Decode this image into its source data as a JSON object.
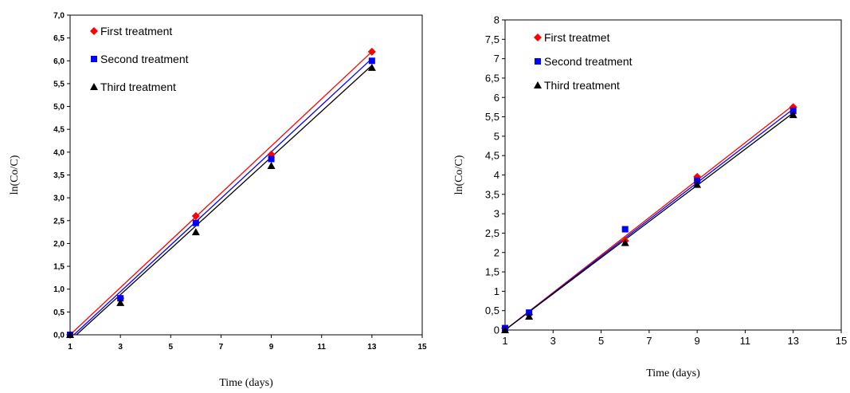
{
  "chart_data": [
    {
      "type": "scatter",
      "xlabel": "Time (days)",
      "ylabel": "ln(Co/C)",
      "xlim": [
        1,
        15
      ],
      "ylim": [
        0,
        7
      ],
      "x_ticks": [
        "1",
        "3",
        "5",
        "7",
        "9",
        "11",
        "13",
        "15"
      ],
      "y_ticks": [
        "0,0",
        "0,5",
        "1,0",
        "1,5",
        "2,0",
        "2,5",
        "3,0",
        "3,5",
        "4,0",
        "4,5",
        "5,0",
        "5,5",
        "6,0",
        "6,5",
        "7,0"
      ],
      "grid": false,
      "legend_position": "top-left",
      "series": [
        {
          "name": "First treatment",
          "color": "#ff0000",
          "marker": "diamond",
          "points": [
            [
              1,
              0.0
            ],
            [
              3,
              0.8
            ],
            [
              6,
              2.6
            ],
            [
              9,
              3.95
            ],
            [
              13,
              6.2
            ]
          ],
          "fit": [
            [
              1,
              0.0
            ],
            [
              13,
              6.2
            ]
          ]
        },
        {
          "name": "Second treatment",
          "color": "#0000ff",
          "marker": "square",
          "points": [
            [
              1,
              0.0
            ],
            [
              3,
              0.8
            ],
            [
              6,
              2.45
            ],
            [
              9,
              3.85
            ],
            [
              13,
              6.0
            ]
          ],
          "fit": [
            [
              1.15,
              0.0
            ],
            [
              13,
              6.05
            ]
          ]
        },
        {
          "name": "Third treatment",
          "color": "#000000",
          "marker": "triangle",
          "points": [
            [
              1,
              0.0
            ],
            [
              3,
              0.7
            ],
            [
              6,
              2.25
            ],
            [
              9,
              3.7
            ],
            [
              13,
              5.85
            ]
          ],
          "fit": [
            [
              1.25,
              0.0
            ],
            [
              13,
              5.9
            ]
          ]
        }
      ]
    },
    {
      "type": "scatter",
      "xlabel": "Time (days)",
      "ylabel": "ln(Co/C)",
      "xlim": [
        1,
        15
      ],
      "ylim": [
        0,
        8
      ],
      "x_ticks": [
        "1",
        "3",
        "5",
        "7",
        "9",
        "11",
        "13",
        "15"
      ],
      "y_ticks": [
        "0",
        "0,5",
        "1",
        "1,5",
        "2",
        "2,5",
        "3",
        "3,5",
        "4",
        "4,5",
        "5",
        "5,5",
        "6",
        "6,5",
        "7",
        "7,5",
        "8"
      ],
      "grid": false,
      "legend_position": "top-left",
      "series": [
        {
          "name": "First treatmet",
          "color": "#ff0000",
          "marker": "diamond",
          "points": [
            [
              1,
              0.05
            ],
            [
              2,
              0.4
            ],
            [
              6,
              2.3
            ],
            [
              9,
              3.95
            ],
            [
              13,
              5.75
            ]
          ],
          "fit": [
            [
              1,
              0.0
            ],
            [
              13,
              5.8
            ]
          ]
        },
        {
          "name": "Second treatment",
          "color": "#0000ff",
          "marker": "square",
          "points": [
            [
              1,
              0.05
            ],
            [
              2,
              0.45
            ],
            [
              6,
              2.6
            ],
            [
              9,
              3.85
            ],
            [
              13,
              5.65
            ]
          ],
          "fit": [
            [
              1,
              0.0
            ],
            [
              13,
              5.7
            ]
          ]
        },
        {
          "name": "Third treatment",
          "color": "#000000",
          "marker": "triangle",
          "points": [
            [
              1,
              0.0
            ],
            [
              2,
              0.35
            ],
            [
              6,
              2.25
            ],
            [
              9,
              3.75
            ],
            [
              13,
              5.55
            ]
          ],
          "fit": [
            [
              1,
              0.0
            ],
            [
              13,
              5.6
            ]
          ]
        }
      ]
    }
  ]
}
